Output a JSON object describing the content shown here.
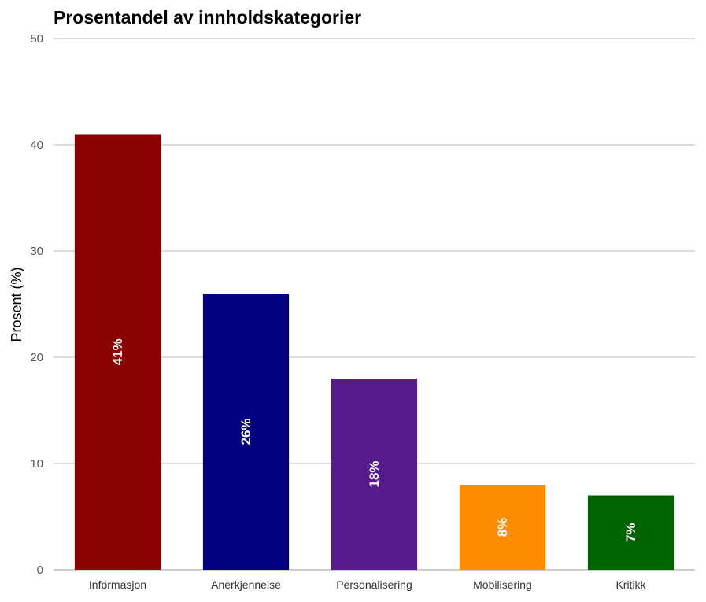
{
  "chart_data": {
    "type": "bar",
    "title": "Prosentandel av innholdskategorier",
    "xlabel": "",
    "ylabel": "Prosent (%)",
    "ylim": [
      0,
      50
    ],
    "yticks": [
      0,
      10,
      20,
      30,
      40,
      50
    ],
    "categories": [
      "Informasjon",
      "Anerkjennelse",
      "Personalisering",
      "Mobilisering",
      "Kritikk"
    ],
    "values": [
      41,
      26,
      18,
      8,
      7
    ],
    "data_labels": [
      "41%",
      "26%",
      "18%",
      "8%",
      "7%"
    ],
    "colors": [
      "#8b0000",
      "#000080",
      "#551a8b",
      "#ff8c00",
      "#006400"
    ],
    "grid": true,
    "legend": "none"
  }
}
